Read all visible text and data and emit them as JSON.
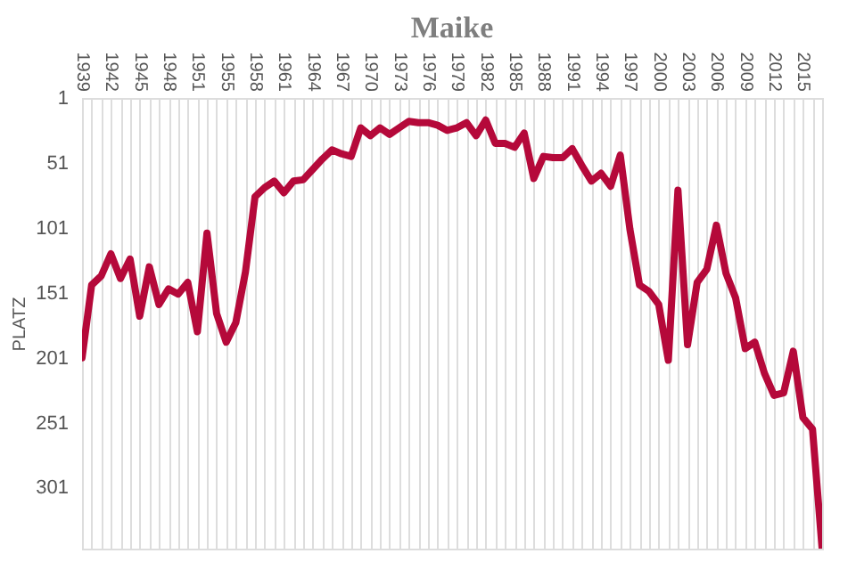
{
  "chart_data": {
    "type": "line",
    "title": "Maike",
    "ylabel": "PLATZ",
    "categories": [
      "1939",
      null,
      null,
      "1942",
      null,
      null,
      "1945",
      null,
      null,
      "1948",
      null,
      null,
      "1951",
      null,
      null,
      "1955",
      null,
      null,
      "1958",
      null,
      null,
      "1961",
      null,
      null,
      "1964",
      null,
      null,
      "1967",
      null,
      null,
      "1970",
      null,
      null,
      "1973",
      null,
      null,
      "1976",
      null,
      null,
      "1979",
      null,
      null,
      "1982",
      null,
      null,
      "1985",
      null,
      null,
      "1988",
      null,
      null,
      "1991",
      null,
      null,
      "1994",
      null,
      null,
      "1997",
      null,
      null,
      "2000",
      null,
      null,
      "2003",
      null,
      null,
      "2006",
      null,
      null,
      "2009",
      null,
      null,
      "2012",
      null,
      null,
      "2015",
      null,
      null
    ],
    "series": [
      {
        "color": "#b5093a",
        "values": [
          201,
          145,
          138,
          121,
          140,
          125,
          169,
          131,
          160,
          148,
          152,
          143,
          181,
          105,
          167,
          189,
          174,
          135,
          77,
          70,
          65,
          74,
          65,
          64,
          56,
          48,
          41,
          44,
          46,
          24,
          30,
          24,
          29,
          24,
          19,
          20,
          20,
          22,
          26,
          24,
          20,
          30,
          18,
          36,
          36,
          39,
          28,
          63,
          46,
          47,
          47,
          40,
          53,
          65,
          59,
          69,
          45,
          102,
          145,
          150,
          160,
          203,
          72,
          191,
          143,
          133,
          99,
          136,
          155,
          194,
          189,
          213,
          230,
          228,
          196,
          247,
          256,
          348
        ]
      }
    ],
    "ylim": [
      348,
      1
    ],
    "yticks": [
      1,
      51,
      101,
      151,
      201,
      251,
      301
    ],
    "grid": "x",
    "marker": "none",
    "line_style": "solid"
  }
}
